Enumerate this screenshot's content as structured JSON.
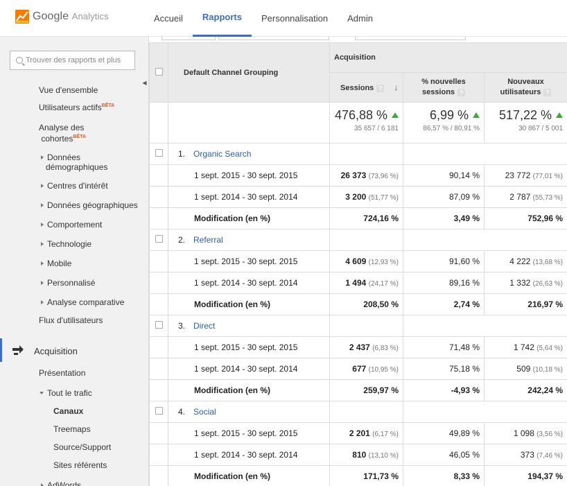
{
  "app": {
    "logo_name": "Google",
    "logo_sub": "Analytics",
    "nav": [
      "Accueil",
      "Rapports",
      "Personnalisation",
      "Admin"
    ],
    "active_nav": "Rapports"
  },
  "sidebar": {
    "search_placeholder": "Trouver des rapports et plus",
    "items": {
      "vue": "Vue d'ensemble",
      "util": "Utilisateurs actifs",
      "beta": "BÊTA",
      "cohortes1": "Analyse des",
      "cohortes2": "cohortes",
      "demo1": "Données",
      "demo2": "démographiques",
      "interet": "Centres d'intérêt",
      "geo": "Données géographiques",
      "comport": "Comportement",
      "techno": "Technologie",
      "mobile": "Mobile",
      "perso": "Personnalisé",
      "compar": "Analyse comparative",
      "flux": "Flux d'utilisateurs",
      "acquisition": "Acquisition",
      "presentation": "Présentation",
      "tout": "Tout le trafic",
      "canaux": "Canaux",
      "treemaps": "Treemaps",
      "source": "Source/Support",
      "sites": "Sites référents",
      "adwords": "AdWords"
    }
  },
  "table": {
    "dimension_header": "Default Channel Grouping",
    "group_header": "Acquisition",
    "col_sessions": "Sessions",
    "col_new1": "% nouvelles",
    "col_new2": "sessions",
    "col_users1": "Nouveaux",
    "col_users2": "utilisateurs",
    "totals": {
      "sessions": "476,88 %",
      "sessions_sub": "35 657 / 6 181",
      "new": "6,99 %",
      "new_sub": "86,57 % / 80,91 %",
      "users": "517,22 %",
      "users_sub": "30 867 / 5 001"
    },
    "channels": [
      {
        "index": "1.",
        "name": "Organic Search",
        "rows": [
          {
            "label": "1 sept. 2015 - 30 sept. 2015",
            "s": "26 373",
            "sp": "(73,96 %)",
            "n": "90,14 %",
            "u": "23 772",
            "up": "(77,01 %)"
          },
          {
            "label": "1 sept. 2014 - 30 sept. 2014",
            "s": "3 200",
            "sp": "(51,77 %)",
            "n": "87,09 %",
            "u": "2 787",
            "up": "(55,73 %)"
          },
          {
            "label": "Modification (en %)",
            "s": "724,16 %",
            "sp": "",
            "n": "3,49 %",
            "u": "752,96 %",
            "up": ""
          }
        ]
      },
      {
        "index": "2.",
        "name": "Referral",
        "rows": [
          {
            "label": "1 sept. 2015 - 30 sept. 2015",
            "s": "4 609",
            "sp": "(12,93 %)",
            "n": "91,60 %",
            "u": "4 222",
            "up": "(13,68 %)"
          },
          {
            "label": "1 sept. 2014 - 30 sept. 2014",
            "s": "1 494",
            "sp": "(24,17 %)",
            "n": "89,16 %",
            "u": "1 332",
            "up": "(26,63 %)"
          },
          {
            "label": "Modification (en %)",
            "s": "208,50 %",
            "sp": "",
            "n": "2,74 %",
            "u": "216,97 %",
            "up": ""
          }
        ]
      },
      {
        "index": "3.",
        "name": "Direct",
        "rows": [
          {
            "label": "1 sept. 2015 - 30 sept. 2015",
            "s": "2 437",
            "sp": "(6,83 %)",
            "n": "71,48 %",
            "u": "1 742",
            "up": "(5,64 %)"
          },
          {
            "label": "1 sept. 2014 - 30 sept. 2014",
            "s": "677",
            "sp": "(10,95 %)",
            "n": "75,18 %",
            "u": "509",
            "up": "(10,18 %)"
          },
          {
            "label": "Modification (en %)",
            "s": "259,97 %",
            "sp": "",
            "n": "-4,93 %",
            "u": "242,24 %",
            "up": ""
          }
        ]
      },
      {
        "index": "4.",
        "name": "Social",
        "rows": [
          {
            "label": "1 sept. 2015 - 30 sept. 2015",
            "s": "2 201",
            "sp": "(6,17 %)",
            "n": "49,89 %",
            "u": "1 098",
            "up": "(3,56 %)"
          },
          {
            "label": "1 sept. 2014 - 30 sept. 2014",
            "s": "810",
            "sp": "(13,10 %)",
            "n": "46,05 %",
            "u": "373",
            "up": "(7,46 %)"
          },
          {
            "label": "Modification (en %)",
            "s": "171,73 %",
            "sp": "",
            "n": "8,33 %",
            "u": "194,37 %",
            "up": ""
          }
        ]
      }
    ]
  },
  "colors": {
    "accent": "#3c6fbf",
    "link": "#2a5db0",
    "up_arrow": "#3cab3c",
    "beta": "#e05a2a"
  }
}
